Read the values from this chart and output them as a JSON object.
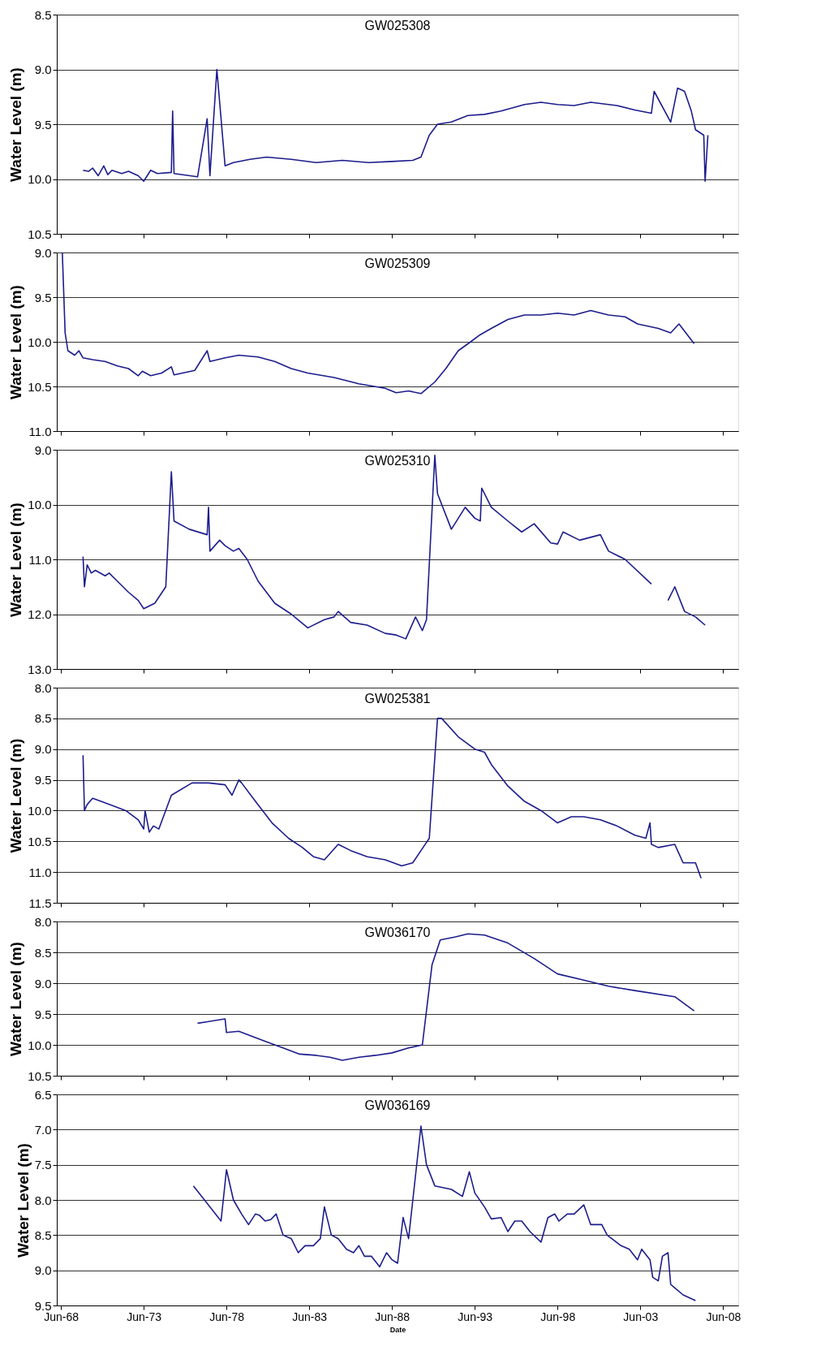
{
  "chart_data": [
    {
      "type": "line",
      "title": "GW025308",
      "ylabel": "Water Level (m)",
      "ylim": [
        10.5,
        8.5
      ],
      "yticks": [
        8.5,
        {
          "value": 9,
          "label": "9.0"
        },
        9.5,
        {
          "value": 10,
          "label": "10.0"
        },
        10.5
      ],
      "xlim": [
        "1968-03",
        "2009-05"
      ],
      "xticks": [
        "1968-06",
        "1973-06",
        "1978-06",
        "1983-06",
        "1988-06",
        "1993-06",
        "1998-06",
        "2003-06",
        "2008-06"
      ],
      "tick_labels": "y",
      "grid": "y",
      "marker": "none",
      "line_style": "solid",
      "series": [
        {
          "color": "#1c1c8c",
          "x": [
            "1969-10",
            "1970-02",
            "1970-05",
            "1970-09",
            "1971-01",
            "1971-04",
            "1971-07",
            "1972-02",
            "1972-07",
            "1973-02",
            "1973-06",
            "1973-11",
            "1974-04",
            "1975-02",
            "1975-03",
            "1975-04",
            "1976-09",
            "1977-04",
            "1977-06",
            "1977-11",
            "1978-05",
            "1978-11",
            "1979-11",
            "1980-11",
            "1982-05",
            "1983-11",
            "1985-06",
            "1987-01",
            "1988-06",
            "1989-09",
            "1990-03",
            "1990-09",
            "1991-03",
            "1992-01",
            "1993-01",
            "1994-01",
            "1995-01",
            "1996-06",
            "1997-06",
            "1998-06",
            "1999-06",
            "2000-06",
            "2002-01",
            "2003-02",
            "2004-02",
            "2004-04",
            "2005-04",
            "2005-09",
            "2006-02",
            "2006-07",
            "2006-10",
            "2007-04",
            "2007-05",
            "2007-07"
          ],
          "values": [
            9.92,
            9.93,
            9.9,
            9.97,
            9.88,
            9.96,
            9.92,
            9.95,
            9.93,
            9.97,
            10.02,
            9.92,
            9.95,
            9.94,
            9.38,
            9.95,
            9.98,
            9.45,
            9.97,
            9.0,
            9.88,
            9.85,
            9.82,
            9.8,
            9.82,
            9.85,
            9.83,
            9.85,
            9.84,
            9.83,
            9.8,
            9.6,
            9.5,
            9.48,
            9.42,
            9.41,
            9.38,
            9.32,
            9.3,
            9.32,
            9.33,
            9.3,
            9.33,
            9.37,
            9.4,
            9.2,
            9.48,
            9.17,
            9.2,
            9.38,
            9.55,
            9.6,
            10.02,
            9.6
          ]
        }
      ]
    },
    {
      "type": "line",
      "title": "GW025309",
      "ylabel": "Water Level (m)",
      "ylim": [
        11.0,
        9.0
      ],
      "yticks": [
        {
          "value": 9,
          "label": "9.0"
        },
        9.5,
        {
          "value": 10,
          "label": "10.0"
        },
        10.5,
        {
          "value": 11,
          "label": "11.0"
        }
      ],
      "xlim": [
        "1968-03",
        "2009-05"
      ],
      "xticks": [
        "1968-06",
        "1973-06",
        "1978-06",
        "1983-06",
        "1988-06",
        "1993-06",
        "1998-06",
        "2003-06",
        "2008-06"
      ],
      "tick_labels": "y",
      "grid": "y",
      "marker": "none",
      "line_style": "solid",
      "series": [
        {
          "color": "#1c1c8c",
          "x": [
            "1968-07",
            "1968-09",
            "1968-11",
            "1969-04",
            "1969-07",
            "1969-10",
            "1970-05",
            "1971-02",
            "1971-11",
            "1972-07",
            "1973-02",
            "1973-05",
            "1973-11",
            "1974-07",
            "1975-02",
            "1975-04",
            "1976-07",
            "1977-04",
            "1977-06",
            "1978-05",
            "1979-03",
            "1980-05",
            "1981-05",
            "1982-05",
            "1983-05",
            "1984-12",
            "1986-06",
            "1988-01",
            "1988-09",
            "1989-06",
            "1990-03",
            "1991-01",
            "1991-09",
            "1992-06",
            "1993-03",
            "1993-10",
            "1994-06",
            "1995-06",
            "1996-06",
            "1997-06",
            "1998-06",
            "1999-06",
            "2000-06",
            "2001-07",
            "2002-07",
            "2003-04",
            "2004-07",
            "2005-04",
            "2005-10",
            "2006-09"
          ],
          "values": [
            9.0,
            9.9,
            10.1,
            10.15,
            10.1,
            10.18,
            10.2,
            10.22,
            10.27,
            10.3,
            10.38,
            10.33,
            10.38,
            10.35,
            10.28,
            10.37,
            10.32,
            10.1,
            10.22,
            10.18,
            10.15,
            10.17,
            10.22,
            10.3,
            10.35,
            10.4,
            10.47,
            10.52,
            10.57,
            10.55,
            10.58,
            10.45,
            10.3,
            10.1,
            10.0,
            9.92,
            9.85,
            9.75,
            9.7,
            9.7,
            9.68,
            9.7,
            9.65,
            9.7,
            9.72,
            9.8,
            9.85,
            9.9,
            9.8,
            10.02
          ]
        }
      ]
    },
    {
      "type": "line",
      "title": "GW025310",
      "ylabel": "Water Level (m)",
      "ylim": [
        13.0,
        9.0
      ],
      "yticks": [
        {
          "value": 9,
          "label": "9.0"
        },
        {
          "value": 10,
          "label": "10.0"
        },
        {
          "value": 11,
          "label": "11.0"
        },
        {
          "value": 12,
          "label": "12.0"
        },
        {
          "value": 13,
          "label": "13.0"
        }
      ],
      "xlim": [
        "1968-03",
        "2009-05"
      ],
      "xticks": [
        "1968-06",
        "1973-06",
        "1978-06",
        "1983-06",
        "1988-06",
        "1993-06",
        "1998-06",
        "2003-06",
        "2008-06"
      ],
      "tick_labels": "y",
      "grid": "y",
      "marker": "none",
      "line_style": "solid",
      "series": [
        {
          "color": "#1c1c8c",
          "x": [
            "1969-10",
            "1969-11",
            "1970-01",
            "1970-04",
            "1970-07",
            "1971-02",
            "1971-05",
            "1971-11",
            "1972-07",
            "1973-02",
            "1973-06",
            "1974-02",
            "1974-10",
            "1975-02",
            "1975-04",
            "1976-03",
            "1977-04",
            "1977-05",
            "1977-06",
            "1978-01",
            "1978-05",
            "1978-11",
            "1979-03",
            "1979-09",
            "1980-05",
            "1981-05",
            "1982-05",
            "1983-05",
            "1984-05",
            "1984-12",
            "1985-03",
            "1985-12",
            "1986-12",
            "1988-01",
            "1988-09",
            "1989-04",
            "1989-11",
            "1990-04",
            "1990-07",
            "1991-01",
            "1991-03",
            "1992-01",
            "1992-11",
            "1993-06",
            "1993-10",
            "1993-11",
            "1994-06",
            "1995-06",
            "1996-04",
            "1997-01",
            "1998-01",
            "1998-06",
            "1998-10",
            "1999-10",
            "2001-01",
            "2001-07",
            "2002-07",
            "2004-02",
            "2004-07",
            "2005-02",
            "2005-07",
            "2006-02",
            "2006-10",
            "2007-05"
          ],
          "values": [
            10.95,
            11.5,
            11.1,
            11.25,
            11.2,
            11.3,
            11.25,
            11.4,
            11.6,
            11.75,
            11.9,
            11.8,
            11.5,
            9.4,
            10.3,
            10.45,
            10.55,
            10.05,
            10.85,
            10.65,
            10.75,
            10.85,
            10.8,
            11.0,
            11.4,
            11.8,
            12.0,
            12.25,
            12.1,
            12.05,
            11.95,
            12.15,
            12.2,
            12.35,
            12.38,
            12.45,
            12.05,
            12.3,
            12.1,
            9.1,
            9.8,
            10.45,
            10.05,
            10.25,
            10.3,
            9.7,
            10.05,
            10.3,
            10.5,
            10.35,
            10.7,
            10.72,
            10.5,
            10.65,
            10.55,
            10.85,
            11.0,
            11.45,
            null,
            11.75,
            11.5,
            11.95,
            12.05,
            12.2
          ]
        }
      ]
    },
    {
      "type": "line",
      "title": "GW025381",
      "ylabel": "Water Level (m)",
      "ylim": [
        11.5,
        8.0
      ],
      "yticks": [
        {
          "value": 8,
          "label": "8.0"
        },
        8.5,
        {
          "value": 9,
          "label": "9.0"
        },
        9.5,
        {
          "value": 10,
          "label": "10.0"
        },
        10.5,
        {
          "value": 11,
          "label": "11.0"
        },
        11.5
      ],
      "xlim": [
        "1968-03",
        "2009-05"
      ],
      "xticks": [
        "1968-06",
        "1973-06",
        "1978-06",
        "1983-06",
        "1988-06",
        "1993-06",
        "1998-06",
        "2003-06",
        "2008-06"
      ],
      "tick_labels": "y",
      "grid": "y",
      "marker": "none",
      "line_style": "solid",
      "series": [
        {
          "color": "#1c1c8c",
          "x": [
            "1969-10",
            "1969-11",
            "1970-01",
            "1970-05",
            "1970-11",
            "1971-05",
            "1972-05",
            "1973-02",
            "1973-06",
            "1973-07",
            "1973-10",
            "1974-01",
            "1974-05",
            "1975-02",
            "1976-05",
            "1977-05",
            "1978-05",
            "1978-10",
            "1979-03",
            "1979-05",
            "1980-03",
            "1981-03",
            "1982-03",
            "1983-01",
            "1983-09",
            "1984-05",
            "1985-03",
            "1985-12",
            "1986-12",
            "1988-01",
            "1989-01",
            "1989-09",
            "1990-06",
            "1990-09",
            "1991-03",
            "1991-06",
            "1992-06",
            "1993-06",
            "1994-01",
            "1994-06",
            "1995-06",
            "1996-06",
            "1997-06",
            "1998-06",
            "1999-04",
            "2000-01",
            "2001-01",
            "2002-01",
            "2003-02",
            "2003-10",
            "2004-01",
            "2004-02",
            "2004-07",
            "2005-07",
            "2006-01",
            "2006-10",
            "2007-02"
          ],
          "values": [
            9.1,
            10.0,
            9.9,
            9.8,
            9.85,
            9.9,
            10.0,
            10.15,
            10.3,
            10.0,
            10.35,
            10.25,
            10.3,
            9.75,
            9.55,
            9.55,
            9.58,
            9.75,
            9.5,
            9.55,
            9.85,
            10.2,
            10.45,
            10.6,
            10.75,
            10.8,
            10.55,
            10.65,
            10.75,
            10.8,
            10.9,
            10.85,
            10.55,
            10.45,
            8.5,
            8.5,
            8.8,
            9.0,
            9.05,
            9.25,
            9.6,
            9.85,
            10.0,
            10.2,
            10.1,
            10.1,
            10.15,
            10.25,
            10.4,
            10.45,
            10.2,
            10.55,
            10.6,
            10.55,
            10.85,
            10.85,
            11.1
          ]
        }
      ]
    },
    {
      "type": "line",
      "title": "GW036170",
      "ylabel": "Water Level (m)",
      "ylim": [
        10.5,
        8.0
      ],
      "yticks": [
        {
          "value": 8,
          "label": "8.0"
        },
        8.5,
        {
          "value": 9,
          "label": "9.0"
        },
        9.5,
        {
          "value": 10,
          "label": "10.0"
        },
        10.5
      ],
      "xlim": [
        "1968-03",
        "2009-05"
      ],
      "xticks": [
        "1968-06",
        "1973-06",
        "1978-06",
        "1983-06",
        "1988-06",
        "1993-06",
        "1998-06",
        "2003-06",
        "2008-06"
      ],
      "tick_labels": "y",
      "grid": "y",
      "marker": "none",
      "line_style": "solid",
      "series": [
        {
          "color": "#1c1c8c",
          "x": [
            "1976-09",
            "1978-05",
            "1978-06",
            "1979-03",
            "1979-11",
            "1980-11",
            "1981-11",
            "1982-11",
            "1983-11",
            "1984-09",
            "1985-06",
            "1986-06",
            "1987-06",
            "1988-06",
            "1989-06",
            "1990-04",
            "1990-11",
            "1991-05",
            "1992-04",
            "1993-01",
            "1994-01",
            "1995-06",
            "1997-01",
            "1998-06",
            "2000-01",
            "2001-07",
            "2003-02",
            "2005-07",
            "2006-09"
          ],
          "values": [
            9.65,
            9.58,
            9.8,
            9.78,
            9.85,
            9.95,
            10.05,
            10.15,
            10.17,
            10.2,
            10.25,
            10.2,
            10.17,
            10.13,
            10.05,
            10.0,
            8.7,
            8.3,
            8.25,
            8.2,
            8.22,
            8.35,
            8.6,
            8.85,
            8.95,
            9.05,
            9.12,
            9.22,
            9.45
          ]
        }
      ]
    },
    {
      "type": "line",
      "title": "GW036169",
      "ylabel": "Water Level (m)",
      "xlabel": "Date",
      "ylim": [
        9.5,
        6.5
      ],
      "yticks": [
        6.5,
        {
          "value": 7,
          "label": "7.0"
        },
        7.5,
        {
          "value": 8,
          "label": "8.0"
        },
        8.5,
        {
          "value": 9,
          "label": "9.0"
        },
        9.5
      ],
      "xlim": [
        "1968-03",
        "2009-05"
      ],
      "xticks": [
        {
          "value": "1968-06",
          "label": "Jun-68"
        },
        {
          "value": "1973-06",
          "label": "Jun-73"
        },
        {
          "value": "1978-06",
          "label": "Jun-78"
        },
        {
          "value": "1983-06",
          "label": "Jun-83"
        },
        {
          "value": "1988-06",
          "label": "Jun-88"
        },
        {
          "value": "1993-06",
          "label": "Jun-93"
        },
        {
          "value": "1998-06",
          "label": "Jun-98"
        },
        {
          "value": "2003-06",
          "label": "Jun-03"
        },
        {
          "value": "2008-06",
          "label": "Jun-08"
        }
      ],
      "grid": "y",
      "marker": "none",
      "line_style": "solid",
      "series": [
        {
          "color": "#1c1c8c",
          "x": [
            "1976-06",
            "1978-02",
            "1978-06",
            "1978-11",
            "1979-05",
            "1979-10",
            "1980-03",
            "1980-06",
            "1980-10",
            "1981-02",
            "1981-06",
            "1981-11",
            "1982-05",
            "1982-10",
            "1983-03",
            "1983-09",
            "1984-02",
            "1984-05",
            "1984-10",
            "1985-03",
            "1985-09",
            "1986-02",
            "1986-06",
            "1986-10",
            "1987-03",
            "1987-09",
            "1988-02",
            "1988-06",
            "1988-10",
            "1989-02",
            "1989-06",
            "1990-03",
            "1990-07",
            "1991-01",
            "1992-01",
            "1992-09",
            "1993-02",
            "1993-06",
            "1994-01",
            "1994-06",
            "1995-01",
            "1995-06",
            "1995-11",
            "1996-04",
            "1996-10",
            "1997-06",
            "1997-11",
            "1998-04",
            "1998-07",
            "1999-01",
            "1999-06",
            "2000-01",
            "2000-06",
            "2001-02",
            "2001-06",
            "2002-04",
            "2002-10",
            "2003-04",
            "2003-07",
            "2004-01",
            "2004-03",
            "2004-07",
            "2004-10",
            "2005-02",
            "2005-04",
            "2005-07",
            "2006-01",
            "2006-10"
          ],
          "values": [
            7.8,
            8.3,
            7.57,
            8.0,
            8.2,
            8.35,
            8.2,
            8.22,
            8.3,
            8.28,
            8.2,
            8.5,
            8.55,
            8.75,
            8.65,
            8.65,
            8.55,
            8.1,
            8.5,
            8.55,
            8.7,
            8.75,
            8.65,
            8.8,
            8.8,
            8.95,
            8.75,
            8.85,
            8.9,
            8.25,
            8.55,
            6.95,
            7.5,
            7.8,
            7.85,
            7.95,
            7.6,
            7.9,
            8.1,
            8.27,
            8.25,
            8.45,
            8.3,
            8.3,
            8.45,
            8.6,
            8.25,
            8.2,
            8.3,
            8.2,
            8.2,
            8.07,
            8.35,
            8.35,
            8.5,
            8.65,
            8.7,
            8.85,
            8.7,
            8.85,
            9.1,
            9.15,
            8.8,
            8.75,
            9.2,
            9.25,
            9.35,
            9.43
          ]
        }
      ]
    }
  ]
}
